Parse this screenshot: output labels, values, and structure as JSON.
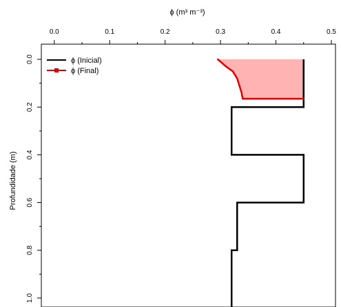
{
  "chart_data": {
    "type": "line",
    "title": "",
    "xlabel": "ϕ (m³ m⁻³)",
    "ylabel": "Profundidade (m)",
    "x_axis_position": "top",
    "y_axis_inverted": true,
    "xlim": [
      -0.02,
      0.51
    ],
    "ylim": [
      -0.02,
      1.05
    ],
    "xticks": [
      0.0,
      0.1,
      0.2,
      0.3,
      0.4,
      0.5
    ],
    "xtick_labels": [
      "0.0",
      "0.1",
      "0.2",
      "0.3",
      "0.4",
      "0.5"
    ],
    "yticks": [
      0.0,
      0.2,
      0.4,
      0.6,
      0.8,
      1.0
    ],
    "ytick_labels": [
      "0.0",
      "0.2",
      "0.4",
      "0.6",
      "0.8",
      "1.0"
    ],
    "grid": false,
    "legend_position": "top-left",
    "series": [
      {
        "name": "ϕ (Inicial)",
        "color": "#000000",
        "style": "step",
        "points": [
          [
            0.45,
            0.0
          ],
          [
            0.45,
            0.2
          ],
          [
            0.32,
            0.2
          ],
          [
            0.32,
            0.4
          ],
          [
            0.45,
            0.4
          ],
          [
            0.45,
            0.6
          ],
          [
            0.33,
            0.6
          ],
          [
            0.33,
            0.8
          ],
          [
            0.32,
            0.8
          ],
          [
            0.32,
            1.05
          ]
        ]
      },
      {
        "name": "ϕ (Final)",
        "color": "#e00000",
        "style": "line-with-point",
        "points": [
          [
            0.295,
            0.0
          ],
          [
            0.3,
            0.01
          ],
          [
            0.31,
            0.03
          ],
          [
            0.322,
            0.05
          ],
          [
            0.33,
            0.08
          ],
          [
            0.334,
            0.11
          ],
          [
            0.338,
            0.14
          ],
          [
            0.34,
            0.165
          ],
          [
            0.45,
            0.165
          ]
        ]
      }
    ],
    "shaded_area": {
      "between": [
        "ϕ (Final)",
        "ϕ (Inicial)"
      ],
      "depth_range": [
        0.0,
        0.165
      ],
      "color": "#ffb3b3"
    }
  }
}
